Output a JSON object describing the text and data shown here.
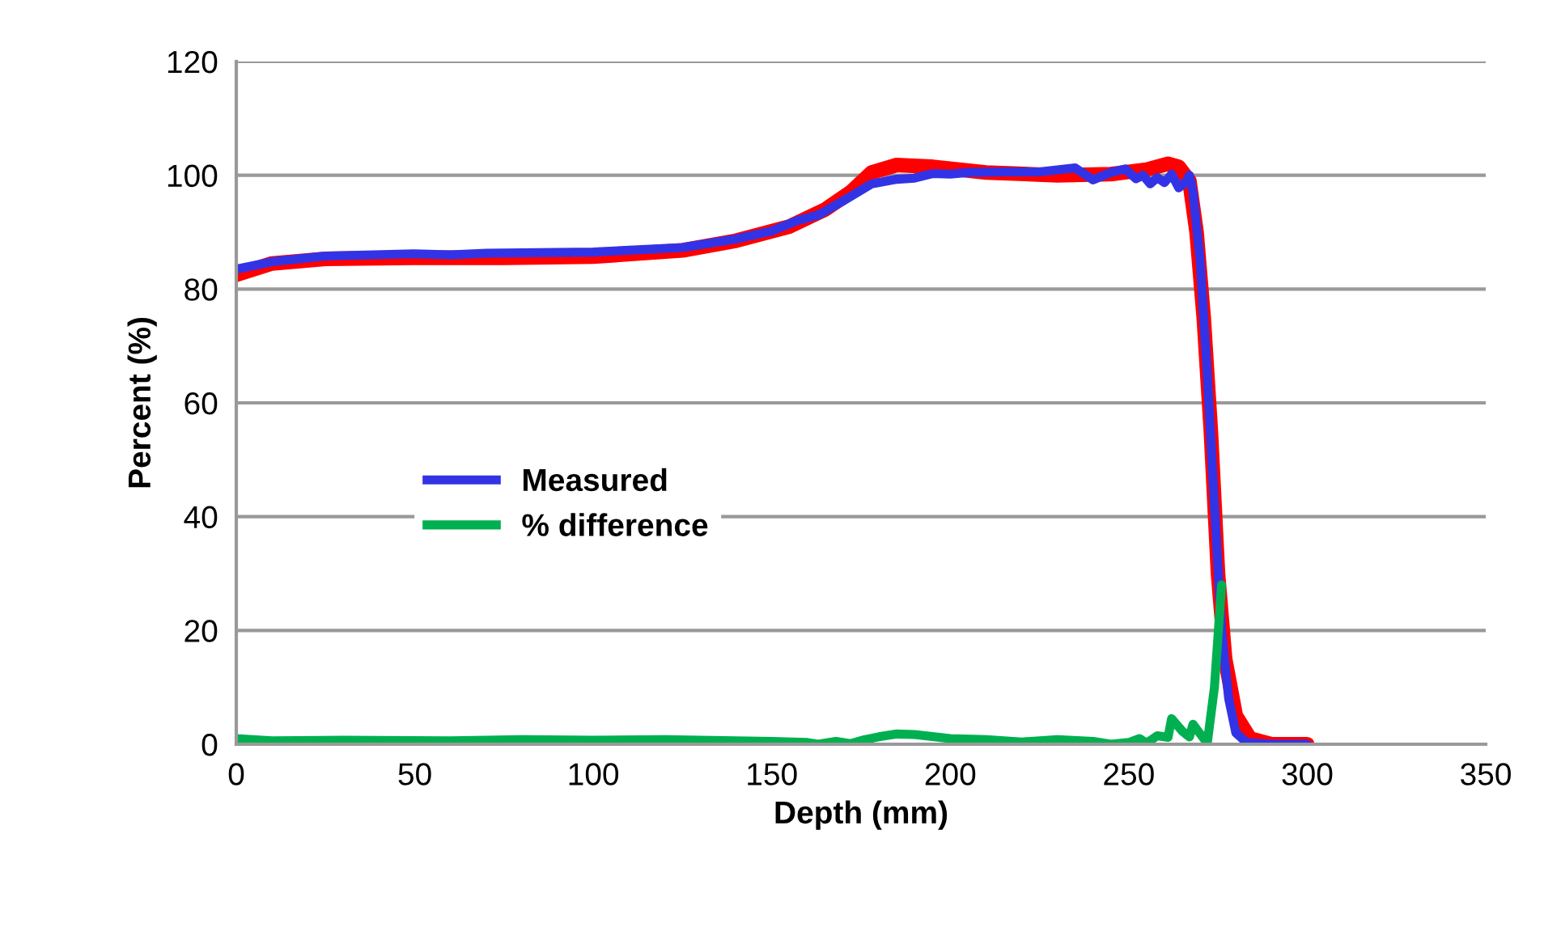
{
  "chart_data": {
    "type": "line",
    "xlabel": "Depth (mm)",
    "ylabel": "Percent (%)",
    "xlim": [
      0,
      350
    ],
    "xticks": [
      0,
      50,
      100,
      150,
      200,
      250,
      300,
      350
    ],
    "ylim": [
      0,
      120
    ],
    "yticks": [
      0,
      20,
      40,
      60,
      80,
      100,
      120
    ],
    "grid": "y",
    "legend": "left",
    "marker": "none",
    "line_style": "solid",
    "series": [
      {
        "color": "#ff0000",
        "x": [
          0,
          10,
          25,
          50,
          75,
          100,
          125,
          140,
          155,
          165,
          172,
          178,
          185,
          195,
          210,
          230,
          245,
          255,
          261,
          264,
          267,
          269,
          271,
          273,
          275,
          277,
          280,
          284,
          290,
          300
        ],
        "values": [
          82.5,
          84.5,
          85.3,
          85.5,
          85.5,
          85.7,
          86.8,
          88.5,
          91,
          94,
          97,
          100.5,
          101.8,
          101.5,
          100.5,
          100,
          100.2,
          101,
          102,
          101.5,
          99,
          90,
          75,
          55,
          30,
          15,
          5,
          1,
          0,
          0
        ]
      },
      {
        "name": "Measured",
        "color": "#3333e6",
        "x": [
          0,
          10,
          25,
          50,
          60,
          70,
          100,
          125,
          140,
          150,
          157,
          163,
          170,
          178,
          185,
          190,
          195,
          200,
          205,
          215,
          225,
          235,
          240,
          245,
          249,
          252,
          254,
          256,
          258,
          260,
          262,
          264,
          266,
          267,
          268,
          270,
          272,
          274,
          276,
          278,
          280,
          283,
          290,
          300
        ],
        "values": [
          83.5,
          84.8,
          85.8,
          86.2,
          86,
          86.3,
          86.5,
          87.3,
          88.8,
          90.2,
          92,
          93,
          95.5,
          98.5,
          99.3,
          99.5,
          100.3,
          100.2,
          100.5,
          100.6,
          100.6,
          101.3,
          99.2,
          100.5,
          101.1,
          99.4,
          100,
          98.5,
          99.6,
          98.7,
          100.2,
          97.8,
          98.8,
          100,
          97,
          85,
          65,
          42,
          20,
          8,
          2,
          0.3,
          0,
          0
        ]
      },
      {
        "name": "% difference",
        "color": "#00b050",
        "x": [
          0,
          10,
          30,
          60,
          80,
          100,
          120,
          150,
          160,
          163,
          168,
          172,
          176,
          180,
          185,
          190,
          200,
          210,
          220,
          230,
          240,
          245,
          250,
          253,
          255,
          258,
          261,
          262,
          265,
          267,
          268,
          271,
          272,
          274,
          276
        ],
        "values": [
          1,
          0.6,
          0.7,
          0.6,
          0.8,
          0.7,
          0.8,
          0.5,
          0.3,
          0,
          0.5,
          0.1,
          0.8,
          1.3,
          1.8,
          1.7,
          1,
          0.8,
          0.4,
          0.8,
          0.5,
          0,
          0.3,
          1,
          0.2,
          1.5,
          1.2,
          4.5,
          2.3,
          1.3,
          3.5,
          1,
          0.2,
          10,
          28
        ]
      }
    ]
  }
}
